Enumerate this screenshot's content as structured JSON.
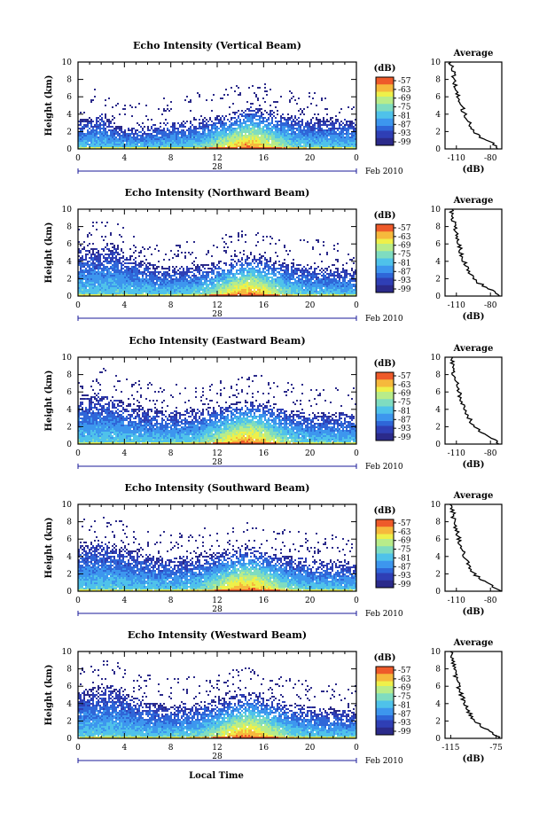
{
  "date_label": "Feb 2010",
  "day_label": "28",
  "x_title": "Local Time",
  "colorbar_unit": "(dB)",
  "colorbar_ticks": [
    "-57",
    "-63",
    "-69",
    "-75",
    "-81",
    "-87",
    "-93",
    "-99"
  ],
  "chart_data": [
    {
      "type": "heatmap",
      "title": "Echo Intensity (Vertical Beam)",
      "ylabel": "Height (km)",
      "x_ticks": [
        "0",
        "4",
        "8",
        "12",
        "16",
        "20",
        "0"
      ],
      "y_ticks": [
        "0",
        "2",
        "4",
        "6",
        "8",
        "10"
      ],
      "xlim": [
        0,
        24
      ],
      "ylim": [
        0,
        10
      ],
      "colorbar": {
        "label": "(dB)",
        "range": [
          -99,
          -57
        ],
        "ticks": [
          -57,
          -63,
          -69,
          -75,
          -81,
          -87,
          -93,
          -99
        ]
      },
      "echo_top_km": [
        3.5,
        3.8,
        4.2,
        3.0,
        2.5,
        2.6,
        2.8,
        3.0,
        3.2,
        3.3,
        3.5,
        3.7,
        3.9,
        4.1,
        4.6,
        5.0,
        4.7,
        4.4,
        4.1,
        3.9,
        3.7,
        3.6,
        3.6,
        3.5,
        3.4
      ],
      "average": {
        "title": "Average",
        "xlabel": "(dB)",
        "x_ticks": [
          "-110",
          "-80"
        ],
        "xlim": [
          -120,
          -70
        ],
        "profile": [
          {
            "h": 0,
            "db": -72
          },
          {
            "h": 0.5,
            "db": -76
          },
          {
            "h": 1,
            "db": -84
          },
          {
            "h": 1.5,
            "db": -90
          },
          {
            "h": 2,
            "db": -94
          },
          {
            "h": 2.5,
            "db": -97
          },
          {
            "h": 3,
            "db": -99
          },
          {
            "h": 3.5,
            "db": -101
          },
          {
            "h": 4,
            "db": -103
          },
          {
            "h": 4.5,
            "db": -104
          },
          {
            "h": 5,
            "db": -106
          },
          {
            "h": 6,
            "db": -108
          },
          {
            "h": 7,
            "db": -110
          },
          {
            "h": 8,
            "db": -112
          },
          {
            "h": 9,
            "db": -113
          },
          {
            "h": 10,
            "db": -115
          }
        ]
      }
    },
    {
      "type": "heatmap",
      "title": "Echo Intensity (Northward Beam)",
      "ylabel": "Height (km)",
      "x_ticks": [
        "0",
        "4",
        "8",
        "12",
        "16",
        "20",
        "0"
      ],
      "y_ticks": [
        "0",
        "2",
        "4",
        "6",
        "8",
        "10"
      ],
      "xlim": [
        0,
        24
      ],
      "ylim": [
        0,
        10
      ],
      "colorbar": {
        "label": "(dB)",
        "range": [
          -99,
          -57
        ],
        "ticks": [
          -57,
          -63,
          -69,
          -75,
          -81,
          -87,
          -93,
          -99
        ]
      },
      "echo_top_km": [
        5.5,
        5.6,
        5.8,
        6.2,
        5.0,
        4.5,
        4.0,
        3.5,
        3.5,
        3.6,
        3.7,
        3.8,
        4.0,
        4.3,
        4.6,
        5.0,
        4.6,
        4.3,
        4.0,
        3.8,
        3.6,
        3.5,
        3.3,
        3.2,
        3.1
      ],
      "average": {
        "title": "Average",
        "xlabel": "(dB)",
        "x_ticks": [
          "-110",
          "-80"
        ],
        "xlim": [
          -120,
          -70
        ],
        "profile": [
          {
            "h": 0,
            "db": -71
          },
          {
            "h": 0.5,
            "db": -76
          },
          {
            "h": 1,
            "db": -84
          },
          {
            "h": 1.5,
            "db": -90
          },
          {
            "h": 2,
            "db": -94
          },
          {
            "h": 2.5,
            "db": -97
          },
          {
            "h": 3,
            "db": -100
          },
          {
            "h": 3.5,
            "db": -102
          },
          {
            "h": 4,
            "db": -103
          },
          {
            "h": 4.5,
            "db": -105
          },
          {
            "h": 5,
            "db": -106
          },
          {
            "h": 6,
            "db": -108
          },
          {
            "h": 7,
            "db": -110
          },
          {
            "h": 8,
            "db": -112
          },
          {
            "h": 9,
            "db": -113
          },
          {
            "h": 10,
            "db": -115
          }
        ]
      }
    },
    {
      "type": "heatmap",
      "title": "Echo Intensity (Eastward Beam)",
      "ylabel": "Height (km)",
      "x_ticks": [
        "0",
        "4",
        "8",
        "12",
        "16",
        "20",
        "0"
      ],
      "y_ticks": [
        "0",
        "2",
        "4",
        "6",
        "8",
        "10"
      ],
      "xlim": [
        0,
        24
      ],
      "ylim": [
        0,
        10
      ],
      "colorbar": {
        "label": "(dB)",
        "range": [
          -99,
          -57
        ],
        "ticks": [
          -57,
          -63,
          -69,
          -75,
          -81,
          -87,
          -93,
          -99
        ]
      },
      "echo_top_km": [
        5.8,
        5.9,
        6.0,
        5.5,
        5.0,
        4.6,
        4.2,
        4.0,
        4.0,
        4.1,
        4.2,
        4.3,
        4.5,
        4.8,
        5.0,
        5.3,
        4.9,
        4.5,
        4.2,
        4.0,
        3.9,
        3.8,
        3.7,
        3.7,
        3.6
      ],
      "average": {
        "title": "Average",
        "xlabel": "(dB)",
        "x_ticks": [
          "-110",
          "-80"
        ],
        "xlim": [
          -120,
          -70
        ],
        "profile": [
          {
            "h": 0,
            "db": -72
          },
          {
            "h": 0.5,
            "db": -77
          },
          {
            "h": 1,
            "db": -85
          },
          {
            "h": 1.5,
            "db": -90
          },
          {
            "h": 2,
            "db": -94
          },
          {
            "h": 2.5,
            "db": -97
          },
          {
            "h": 3,
            "db": -99
          },
          {
            "h": 3.5,
            "db": -101
          },
          {
            "h": 4,
            "db": -103
          },
          {
            "h": 4.5,
            "db": -104
          },
          {
            "h": 5,
            "db": -106
          },
          {
            "h": 6,
            "db": -108
          },
          {
            "h": 7,
            "db": -110
          },
          {
            "h": 8,
            "db": -112
          },
          {
            "h": 9,
            "db": -113
          },
          {
            "h": 10,
            "db": -115
          }
        ]
      }
    },
    {
      "type": "heatmap",
      "title": "Echo Intensity (Southward Beam)",
      "ylabel": "Height (km)",
      "x_ticks": [
        "0",
        "4",
        "8",
        "12",
        "16",
        "20",
        "0"
      ],
      "y_ticks": [
        "0",
        "2",
        "4",
        "6",
        "8",
        "10"
      ],
      "xlim": [
        0,
        24
      ],
      "ylim": [
        0,
        10
      ],
      "colorbar": {
        "label": "(dB)",
        "range": [
          -99,
          -57
        ],
        "ticks": [
          -57,
          -63,
          -69,
          -75,
          -81,
          -87,
          -93,
          -99
        ]
      },
      "echo_top_km": [
        5.6,
        5.8,
        6.0,
        5.6,
        5.2,
        4.8,
        4.4,
        4.1,
        4.0,
        4.1,
        4.2,
        4.4,
        4.6,
        4.9,
        5.1,
        5.2,
        4.8,
        4.5,
        4.2,
        4.0,
        3.8,
        3.7,
        3.6,
        3.5,
        3.5
      ],
      "average": {
        "title": "Average",
        "xlabel": "(dB)",
        "x_ticks": [
          "-110",
          "-80"
        ],
        "xlim": [
          -120,
          -70
        ],
        "profile": [
          {
            "h": 0,
            "db": -72
          },
          {
            "h": 0.5,
            "db": -77
          },
          {
            "h": 1,
            "db": -84
          },
          {
            "h": 1.5,
            "db": -90
          },
          {
            "h": 2,
            "db": -94
          },
          {
            "h": 2.5,
            "db": -97
          },
          {
            "h": 3,
            "db": -99
          },
          {
            "h": 3.5,
            "db": -101
          },
          {
            "h": 4,
            "db": -103
          },
          {
            "h": 4.5,
            "db": -104
          },
          {
            "h": 5,
            "db": -106
          },
          {
            "h": 6,
            "db": -108
          },
          {
            "h": 7,
            "db": -110
          },
          {
            "h": 8,
            "db": -112
          },
          {
            "h": 9,
            "db": -113
          },
          {
            "h": 10,
            "db": -115
          }
        ]
      }
    },
    {
      "type": "heatmap",
      "title": "Echo Intensity (Westward Beam)",
      "ylabel": "Height (km)",
      "x_ticks": [
        "0",
        "4",
        "8",
        "12",
        "16",
        "20",
        "0"
      ],
      "y_ticks": [
        "0",
        "2",
        "4",
        "6",
        "8",
        "10"
      ],
      "xlim": [
        0,
        24
      ],
      "ylim": [
        0,
        10
      ],
      "colorbar": {
        "label": "(dB)",
        "range": [
          -99,
          -57
        ],
        "ticks": [
          -57,
          -63,
          -69,
          -75,
          -81,
          -87,
          -93,
          -99
        ]
      },
      "echo_top_km": [
        5.6,
        5.8,
        6.0,
        6.4,
        5.4,
        4.8,
        4.4,
        4.1,
        4.0,
        4.1,
        4.2,
        4.4,
        4.6,
        4.9,
        5.2,
        5.4,
        5.0,
        4.6,
        4.3,
        4.0,
        3.8,
        3.6,
        3.5,
        3.4,
        3.4
      ],
      "average": {
        "title": "Average",
        "xlabel": "(dB)",
        "x_ticks": [
          "-115",
          "-75"
        ],
        "xlim": [
          -120,
          -70
        ],
        "profile": [
          {
            "h": 0,
            "db": -71
          },
          {
            "h": 0.5,
            "db": -76
          },
          {
            "h": 1,
            "db": -83
          },
          {
            "h": 1.5,
            "db": -89
          },
          {
            "h": 2,
            "db": -94
          },
          {
            "h": 2.5,
            "db": -97
          },
          {
            "h": 3,
            "db": -99
          },
          {
            "h": 3.5,
            "db": -101
          },
          {
            "h": 4,
            "db": -103
          },
          {
            "h": 4.5,
            "db": -104
          },
          {
            "h": 5,
            "db": -106
          },
          {
            "h": 6,
            "db": -108
          },
          {
            "h": 7,
            "db": -110
          },
          {
            "h": 8,
            "db": -112
          },
          {
            "h": 9,
            "db": -113
          },
          {
            "h": 10,
            "db": -115
          }
        ]
      }
    }
  ]
}
